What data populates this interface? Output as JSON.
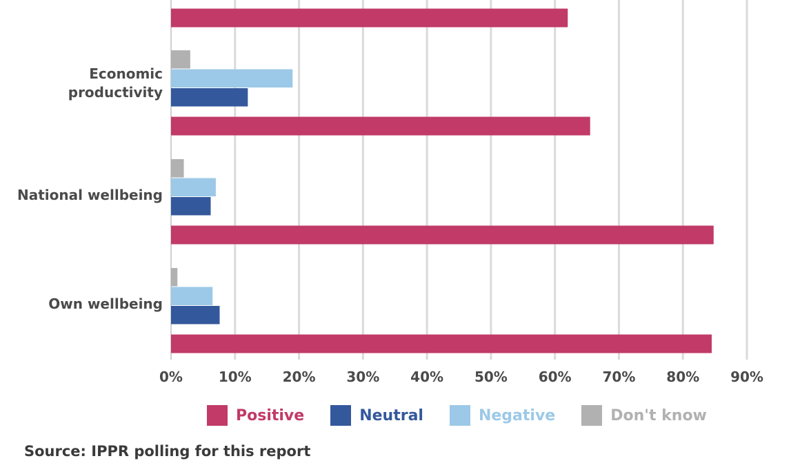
{
  "chart_data": {
    "type": "bar",
    "orientation": "horizontal",
    "title": "",
    "xlabel": "",
    "ylabel": "",
    "xlim": [
      0,
      90
    ],
    "x_ticks": [
      "0%",
      "10%",
      "20%",
      "30%",
      "40%",
      "50%",
      "60%",
      "70%",
      "80%",
      "90%"
    ],
    "grid": "vertical",
    "legend_position": "bottom",
    "categories": [
      "",
      "Economic productivity",
      "National wellbeing",
      "Own wellbeing"
    ],
    "series": [
      {
        "name": "Don't know",
        "color": "#b1b1b1",
        "values": [
          null,
          3,
          2,
          1
        ]
      },
      {
        "name": "Negative",
        "color": "#9cc9e7",
        "values": [
          null,
          19,
          7,
          6.5
        ]
      },
      {
        "name": "Neutral",
        "color": "#34589c",
        "values": [
          null,
          12,
          6.2,
          7.6
        ]
      },
      {
        "name": "Positive",
        "color": "#c13a68",
        "values": [
          62,
          65.5,
          84.8,
          84.5
        ]
      }
    ]
  },
  "legend": {
    "items": [
      {
        "label": "Positive",
        "color": "#c13a68"
      },
      {
        "label": "Neutral",
        "color": "#34589c"
      },
      {
        "label": "Negative",
        "color": "#9cc9e7"
      },
      {
        "label": "Don't know",
        "color": "#b1b1b1"
      }
    ]
  },
  "source": "Source: IPPR polling for this report"
}
